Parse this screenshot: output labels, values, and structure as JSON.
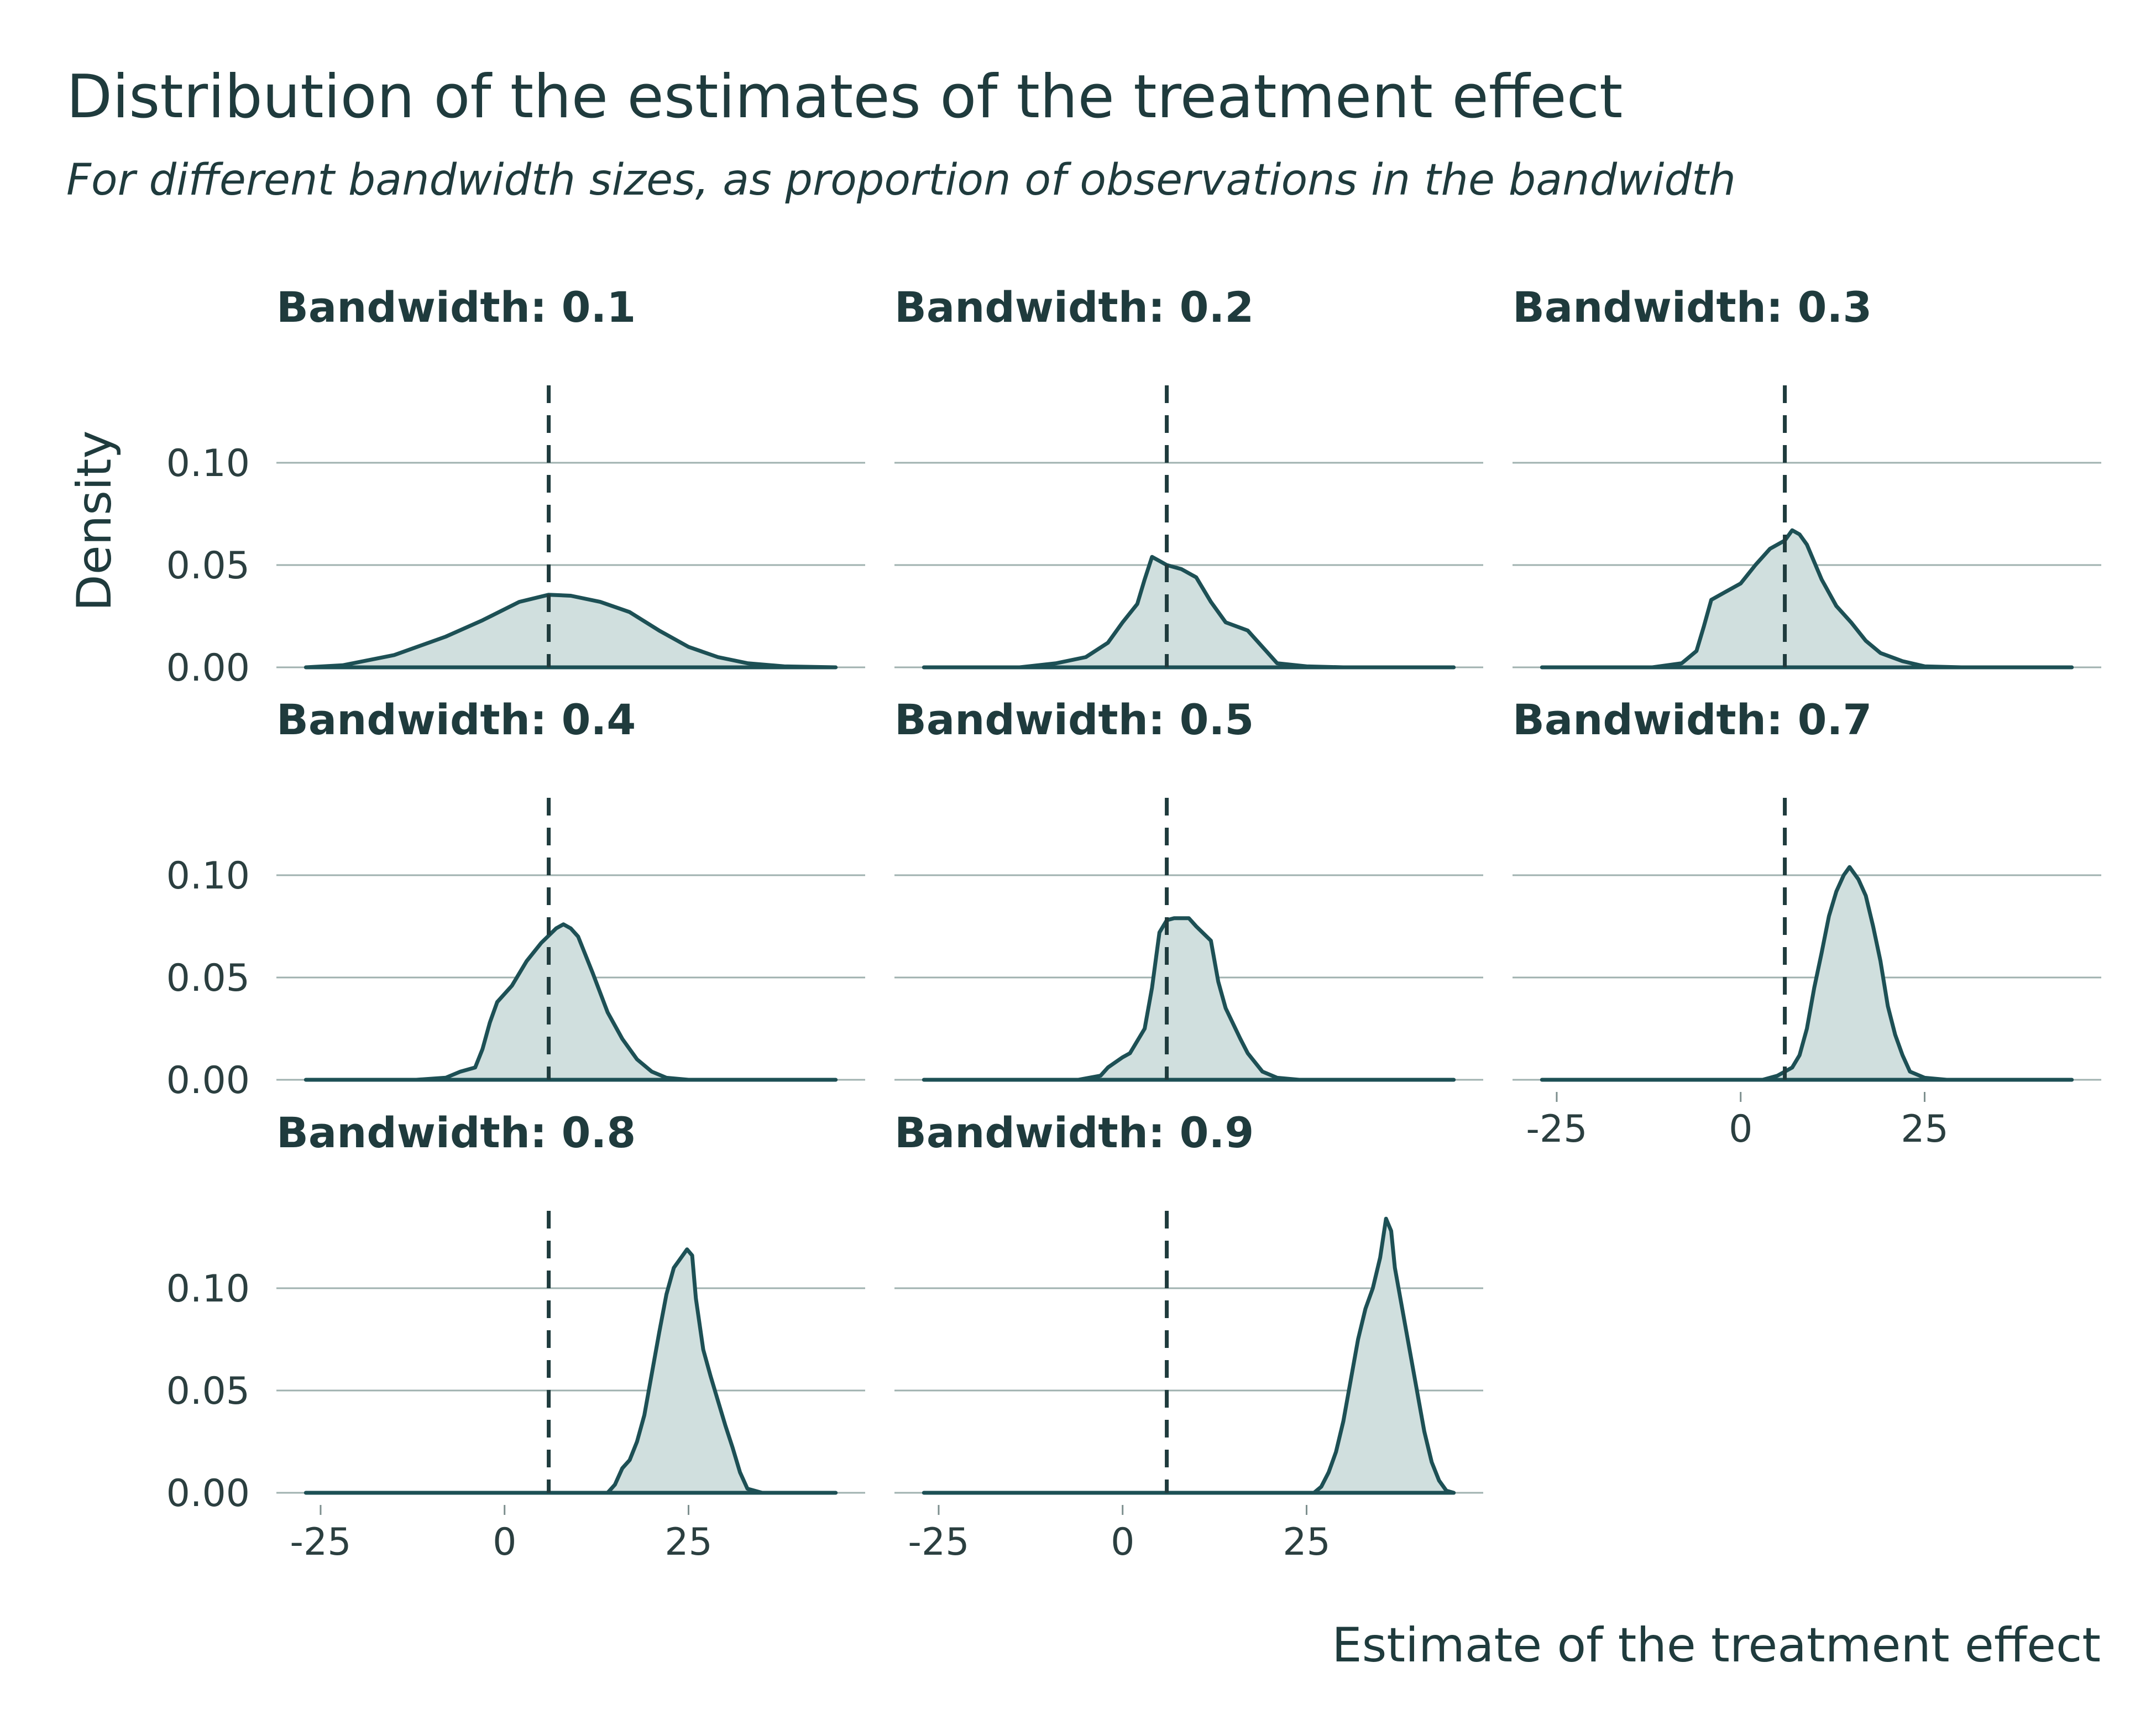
{
  "chart_data": {
    "type": "density",
    "title": "Distribution of the estimates of the treatment effect",
    "subtitle": "For different bandwidth sizes, as proportion of observations in the bandwidth",
    "xlabel": "Estimate of the treatment effect",
    "ylabel": "Density",
    "xlim": [
      -28,
      46
    ],
    "ylim": [
      0,
      0.14
    ],
    "x_ticks": [
      "-25",
      "0",
      "25"
    ],
    "x_tick_values": [
      -25,
      0,
      25
    ],
    "y_ticks": [
      "0.00",
      "0.05",
      "0.10"
    ],
    "y_tick_values": [
      0,
      0.05,
      0.1
    ],
    "reference_line_x": 6,
    "colors": {
      "line": "#1d5055",
      "fill": "#d0dfde",
      "text": "#1f3b3d",
      "grid": "#9fb1af"
    },
    "facets": [
      {
        "label": "Bandwidth: 0.1",
        "points": [
          [
            -27,
            0
          ],
          [
            -22,
            0.001
          ],
          [
            -15,
            0.006
          ],
          [
            -8,
            0.015
          ],
          [
            -3,
            0.023
          ],
          [
            2,
            0.032
          ],
          [
            6,
            0.0355
          ],
          [
            9,
            0.035
          ],
          [
            13,
            0.032
          ],
          [
            17,
            0.027
          ],
          [
            21,
            0.018
          ],
          [
            25,
            0.01
          ],
          [
            29,
            0.005
          ],
          [
            33,
            0.002
          ],
          [
            38,
            0.0005
          ],
          [
            45,
            0
          ]
        ]
      },
      {
        "label": "Bandwidth: 0.2",
        "points": [
          [
            -27,
            0
          ],
          [
            -14,
            0
          ],
          [
            -9,
            0.002
          ],
          [
            -5,
            0.005
          ],
          [
            -2,
            0.012
          ],
          [
            0,
            0.022
          ],
          [
            2,
            0.031
          ],
          [
            3,
            0.043
          ],
          [
            4,
            0.054
          ],
          [
            5,
            0.052
          ],
          [
            6,
            0.05
          ],
          [
            8,
            0.048
          ],
          [
            10,
            0.044
          ],
          [
            12,
            0.032
          ],
          [
            14,
            0.022
          ],
          [
            17,
            0.018
          ],
          [
            19,
            0.01
          ],
          [
            21,
            0.002
          ],
          [
            25,
            0.0005
          ],
          [
            30,
            0
          ],
          [
            45,
            0
          ]
        ]
      },
      {
        "label": "Bandwidth: 0.3",
        "points": [
          [
            -27,
            0
          ],
          [
            -12,
            0
          ],
          [
            -8,
            0.002
          ],
          [
            -6,
            0.008
          ],
          [
            -5,
            0.02
          ],
          [
            -4,
            0.033
          ],
          [
            -2,
            0.037
          ],
          [
            0,
            0.041
          ],
          [
            2,
            0.05
          ],
          [
            4,
            0.058
          ],
          [
            6,
            0.062
          ],
          [
            7,
            0.067
          ],
          [
            8,
            0.065
          ],
          [
            9,
            0.06
          ],
          [
            11,
            0.043
          ],
          [
            13,
            0.03
          ],
          [
            15,
            0.022
          ],
          [
            17,
            0.013
          ],
          [
            19,
            0.007
          ],
          [
            22,
            0.003
          ],
          [
            25,
            0.0005
          ],
          [
            30,
            0
          ],
          [
            45,
            0
          ]
        ]
      },
      {
        "label": "Bandwidth: 0.4",
        "points": [
          [
            -27,
            0
          ],
          [
            -12,
            0
          ],
          [
            -8,
            0.001
          ],
          [
            -6,
            0.004
          ],
          [
            -4,
            0.006
          ],
          [
            -3,
            0.015
          ],
          [
            -2,
            0.028
          ],
          [
            -1,
            0.038
          ],
          [
            1,
            0.046
          ],
          [
            3,
            0.058
          ],
          [
            5,
            0.067
          ],
          [
            7,
            0.074
          ],
          [
            8,
            0.076
          ],
          [
            9,
            0.074
          ],
          [
            10,
            0.07
          ],
          [
            12,
            0.052
          ],
          [
            14,
            0.033
          ],
          [
            16,
            0.02
          ],
          [
            18,
            0.01
          ],
          [
            20,
            0.004
          ],
          [
            22,
            0.001
          ],
          [
            25,
            0
          ],
          [
            45,
            0
          ]
        ]
      },
      {
        "label": "Bandwidth: 0.5",
        "points": [
          [
            -27,
            0
          ],
          [
            -6,
            0
          ],
          [
            -3,
            0.002
          ],
          [
            -2,
            0.006
          ],
          [
            0,
            0.011
          ],
          [
            1,
            0.013
          ],
          [
            3,
            0.025
          ],
          [
            4,
            0.045
          ],
          [
            5,
            0.072
          ],
          [
            6,
            0.078
          ],
          [
            7,
            0.079
          ],
          [
            9,
            0.079
          ],
          [
            10,
            0.075
          ],
          [
            12,
            0.068
          ],
          [
            13,
            0.048
          ],
          [
            14,
            0.035
          ],
          [
            16,
            0.02
          ],
          [
            17,
            0.013
          ],
          [
            19,
            0.004
          ],
          [
            21,
            0.001
          ],
          [
            24,
            0
          ],
          [
            45,
            0
          ]
        ]
      },
      {
        "label": "Bandwidth: 0.7",
        "points": [
          [
            -27,
            0
          ],
          [
            3,
            0
          ],
          [
            5,
            0.002
          ],
          [
            7,
            0.006
          ],
          [
            8,
            0.012
          ],
          [
            9,
            0.025
          ],
          [
            10,
            0.045
          ],
          [
            11,
            0.062
          ],
          [
            12,
            0.08
          ],
          [
            13,
            0.092
          ],
          [
            14,
            0.1
          ],
          [
            14.8,
            0.104
          ],
          [
            16,
            0.098
          ],
          [
            17,
            0.09
          ],
          [
            18,
            0.075
          ],
          [
            19,
            0.058
          ],
          [
            20,
            0.036
          ],
          [
            21,
            0.022
          ],
          [
            22,
            0.012
          ],
          [
            23,
            0.004
          ],
          [
            25,
            0.001
          ],
          [
            28,
            0
          ],
          [
            45,
            0
          ]
        ]
      },
      {
        "label": "Bandwidth: 0.8",
        "points": [
          [
            -27,
            0
          ],
          [
            14,
            0
          ],
          [
            15,
            0.004
          ],
          [
            16,
            0.012
          ],
          [
            17,
            0.016
          ],
          [
            18,
            0.025
          ],
          [
            19,
            0.038
          ],
          [
            20,
            0.058
          ],
          [
            21,
            0.078
          ],
          [
            22,
            0.097
          ],
          [
            23,
            0.11
          ],
          [
            24,
            0.115
          ],
          [
            24.8,
            0.119
          ],
          [
            25.5,
            0.116
          ],
          [
            26,
            0.095
          ],
          [
            27,
            0.07
          ],
          [
            28,
            0.057
          ],
          [
            29,
            0.045
          ],
          [
            30,
            0.033
          ],
          [
            31,
            0.022
          ],
          [
            32,
            0.01
          ],
          [
            33,
            0.002
          ],
          [
            35,
            0
          ],
          [
            45,
            0
          ]
        ]
      },
      {
        "label": "Bandwidth: 0.9",
        "points": [
          [
            -27,
            0
          ],
          [
            26,
            0
          ],
          [
            27,
            0.003
          ],
          [
            28,
            0.01
          ],
          [
            29,
            0.02
          ],
          [
            30,
            0.035
          ],
          [
            31,
            0.055
          ],
          [
            32,
            0.075
          ],
          [
            33,
            0.09
          ],
          [
            34,
            0.1
          ],
          [
            35,
            0.115
          ],
          [
            35.8,
            0.134
          ],
          [
            36.5,
            0.128
          ],
          [
            37,
            0.11
          ],
          [
            38,
            0.09
          ],
          [
            39,
            0.07
          ],
          [
            40,
            0.05
          ],
          [
            41,
            0.03
          ],
          [
            42,
            0.015
          ],
          [
            43,
            0.006
          ],
          [
            44,
            0.001
          ],
          [
            45,
            0
          ]
        ]
      }
    ]
  }
}
